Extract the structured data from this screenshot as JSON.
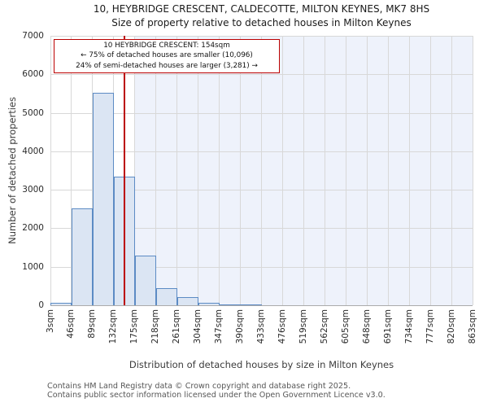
{
  "title": "10, HEYBRIDGE CRESCENT, CALDECOTTE, MILTON KEYNES, MK7 8HS",
  "subtitle": "Size of property relative to detached houses in Milton Keynes",
  "annotation": {
    "line1": "10 HEYBRIDGE CRESCENT: 154sqm",
    "line2": "← 75% of detached houses are smaller (10,096)",
    "line3": "24% of semi-detached houses are larger (3,281) →"
  },
  "y_axis": {
    "label": "Number of detached properties",
    "ticks": [
      0,
      1000,
      2000,
      3000,
      4000,
      5000,
      6000,
      7000
    ]
  },
  "x_axis": {
    "label": "Distribution of detached houses by size in Milton Keynes"
  },
  "footer": {
    "line1": "Contains HM Land Registry data © Crown copyright and database right 2025.",
    "line2": "Contains public sector information licensed under the Open Government Licence v3.0."
  },
  "chart_data": {
    "type": "bar",
    "title": "10, HEYBRIDGE CRESCENT, CALDECOTTE, MILTON KEYNES, MK7 8HS",
    "subtitle": "Size of property relative to detached houses in Milton Keynes",
    "xlabel": "Distribution of detached houses by size in Milton Keynes",
    "ylabel": "Number of detached properties",
    "ylim": [
      0,
      7000
    ],
    "grid": true,
    "bin_width_sqm": 43,
    "bin_edges_sqm": [
      3,
      46,
      89,
      132,
      175,
      218,
      261,
      304,
      347,
      390,
      433,
      476,
      519,
      562,
      605,
      648,
      691,
      734,
      777,
      820,
      863
    ],
    "x_tick_labels": [
      "3sqm",
      "46sqm",
      "89sqm",
      "132sqm",
      "175sqm",
      "218sqm",
      "261sqm",
      "304sqm",
      "347sqm",
      "390sqm",
      "433sqm",
      "476sqm",
      "519sqm",
      "562sqm",
      "605sqm",
      "648sqm",
      "691sqm",
      "734sqm",
      "777sqm",
      "820sqm",
      "863sqm"
    ],
    "values": [
      70,
      2510,
      5520,
      3350,
      1290,
      450,
      210,
      60,
      25,
      20,
      0,
      0,
      0,
      0,
      0,
      0,
      0,
      0,
      0,
      0
    ],
    "marker": {
      "label": "10 HEYBRIDGE CRESCENT",
      "value_sqm": 154,
      "smaller_pct": 75,
      "smaller_count": "10,096",
      "larger_pct": 24,
      "larger_count": "3,281"
    },
    "shaded_region_start_sqm": 175,
    "colors": {
      "bar_fill": "#dbe5f3",
      "bar_edge": "#5c8bc4",
      "marker_line": "#bb0000",
      "annotation_border": "#bb0000",
      "shaded_region": "#eef2fb",
      "gridline": "#d8d8d8"
    }
  }
}
